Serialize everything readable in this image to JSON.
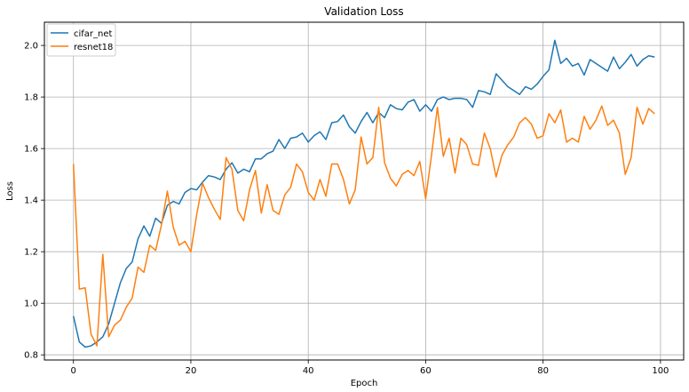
{
  "chart_data": {
    "type": "line",
    "title": "Validation Loss",
    "xlabel": "Epoch",
    "ylabel": "Loss",
    "xlim": [
      -4.95,
      103.95
    ],
    "ylim": [
      0.78,
      2.09
    ],
    "xticks": [
      0,
      20,
      40,
      60,
      80,
      100
    ],
    "yticks": [
      0.8,
      1.0,
      1.2,
      1.4,
      1.6,
      1.8,
      2.0
    ],
    "xtick_labels": [
      "0",
      "20",
      "40",
      "60",
      "80",
      "100"
    ],
    "ytick_labels": [
      "0.8",
      "1.0",
      "1.2",
      "1.4",
      "1.6",
      "1.8",
      "2.0"
    ],
    "grid": true,
    "legend_position": "top-left",
    "series": [
      {
        "name": "cifar_net",
        "color": "#1f77b4",
        "values": [
          0.95,
          0.85,
          0.83,
          0.835,
          0.85,
          0.87,
          0.92,
          1.0,
          1.08,
          1.135,
          1.16,
          1.25,
          1.3,
          1.26,
          1.33,
          1.31,
          1.38,
          1.395,
          1.385,
          1.43,
          1.445,
          1.44,
          1.47,
          1.495,
          1.49,
          1.48,
          1.52,
          1.545,
          1.505,
          1.52,
          1.51,
          1.56,
          1.56,
          1.58,
          1.59,
          1.635,
          1.6,
          1.64,
          1.645,
          1.66,
          1.625,
          1.65,
          1.665,
          1.635,
          1.7,
          1.705,
          1.73,
          1.685,
          1.66,
          1.705,
          1.74,
          1.7,
          1.74,
          1.72,
          1.77,
          1.755,
          1.75,
          1.78,
          1.79,
          1.745,
          1.77,
          1.745,
          1.79,
          1.8,
          1.79,
          1.795,
          1.795,
          1.79,
          1.76,
          1.825,
          1.82,
          1.81,
          1.89,
          1.865,
          1.84,
          1.825,
          1.81,
          1.84,
          1.83,
          1.85,
          1.88,
          1.905,
          2.02,
          1.93,
          1.95,
          1.92,
          1.93,
          1.885,
          1.945,
          1.93,
          1.915,
          1.9,
          1.955,
          1.91,
          1.935,
          1.965,
          1.92,
          1.945,
          1.96,
          1.955
        ]
      },
      {
        "name": "resnet18",
        "color": "#ff7f0e",
        "values": [
          1.54,
          1.055,
          1.06,
          0.88,
          0.835,
          1.19,
          0.87,
          0.915,
          0.935,
          0.985,
          1.02,
          1.14,
          1.12,
          1.225,
          1.205,
          1.305,
          1.435,
          1.295,
          1.225,
          1.24,
          1.2,
          1.345,
          1.465,
          1.41,
          1.365,
          1.325,
          1.565,
          1.52,
          1.36,
          1.32,
          1.44,
          1.515,
          1.35,
          1.46,
          1.36,
          1.345,
          1.42,
          1.45,
          1.54,
          1.51,
          1.43,
          1.4,
          1.48,
          1.415,
          1.54,
          1.54,
          1.48,
          1.385,
          1.44,
          1.645,
          1.54,
          1.565,
          1.76,
          1.545,
          1.485,
          1.455,
          1.5,
          1.515,
          1.495,
          1.55,
          1.405,
          1.575,
          1.76,
          1.57,
          1.64,
          1.505,
          1.64,
          1.615,
          1.54,
          1.535,
          1.66,
          1.6,
          1.49,
          1.575,
          1.615,
          1.645,
          1.7,
          1.72,
          1.695,
          1.64,
          1.65,
          1.735,
          1.7,
          1.75,
          1.625,
          1.64,
          1.625,
          1.725,
          1.675,
          1.71,
          1.765,
          1.69,
          1.71,
          1.66,
          1.5,
          1.565,
          1.76,
          1.695,
          1.755,
          1.735
        ]
      }
    ]
  }
}
